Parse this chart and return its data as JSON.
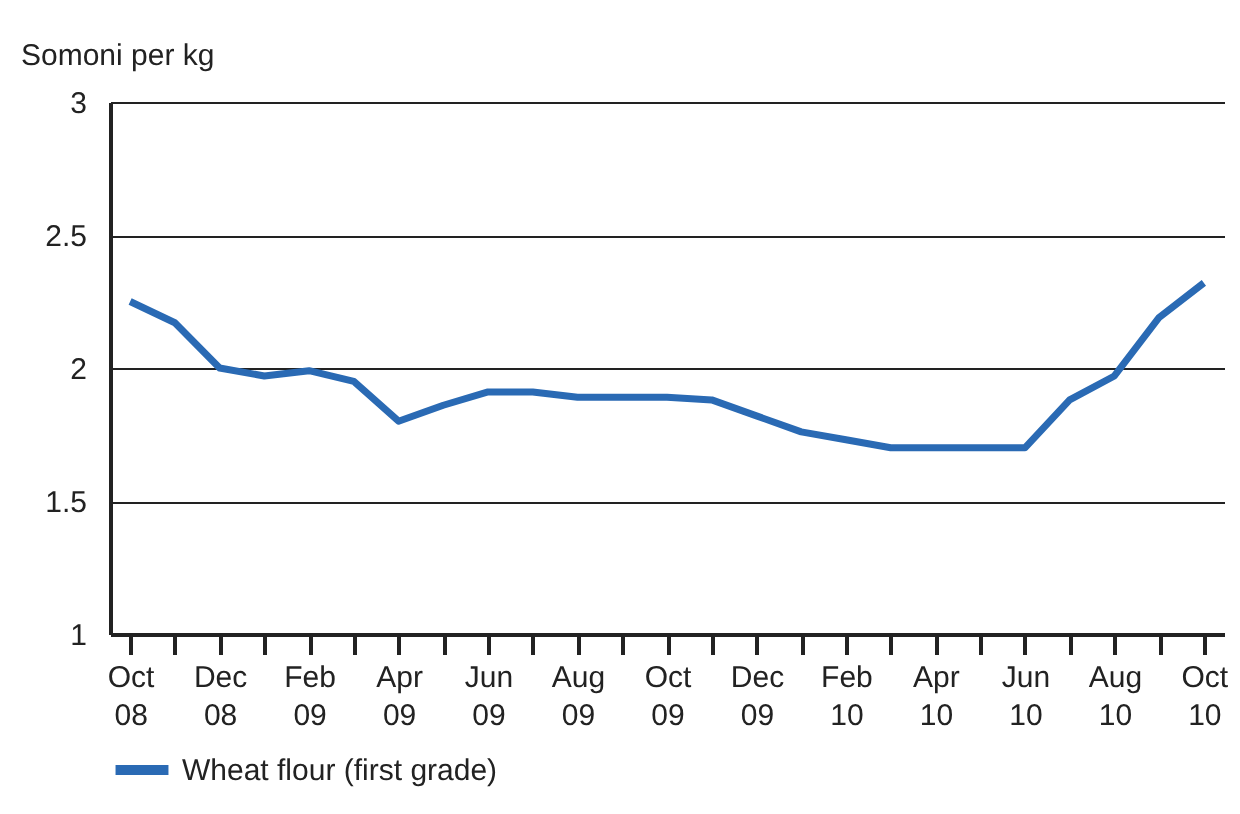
{
  "chart_data": {
    "type": "line",
    "ylabel": "Somoni per kg",
    "categories": [
      "Oct 08",
      null,
      "Dec 08",
      null,
      "Feb 09",
      null,
      "Apr 09",
      null,
      "Jun 09",
      null,
      "Aug 09",
      null,
      "Oct 09",
      null,
      "Dec 09",
      null,
      "Feb 10",
      null,
      "Apr 10",
      null,
      "Jun 10",
      null,
      "Aug 10",
      null,
      "Oct 10"
    ],
    "series": [
      {
        "name": "Wheat flour (first grade)",
        "color": "#2a6ab4",
        "values": [
          2.25,
          2.17,
          2.0,
          1.97,
          1.99,
          1.95,
          1.8,
          1.86,
          1.91,
          1.91,
          1.89,
          1.89,
          1.89,
          1.88,
          1.82,
          1.76,
          1.73,
          1.7,
          1.7,
          1.7,
          1.7,
          1.88,
          1.97,
          2.19,
          2.32
        ]
      }
    ],
    "ylim": [
      1,
      3
    ],
    "yticks": [
      1,
      1.5,
      2,
      2.5,
      3
    ],
    "grid": "y",
    "legend": "bottom",
    "marker": "none",
    "line_style": "solid"
  }
}
